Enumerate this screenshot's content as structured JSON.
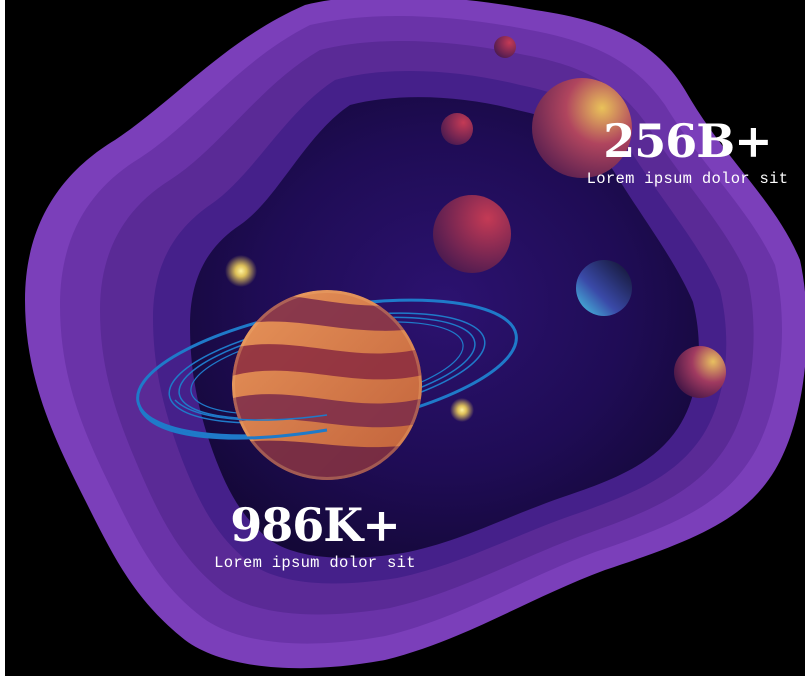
{
  "stats": [
    {
      "value": "256B+",
      "caption": "Lorem ipsum dolor sit"
    },
    {
      "value": "986K+",
      "caption": "Lorem ipsum dolor sit"
    }
  ],
  "colors": {
    "background": "#000000",
    "layer_outer": "#6a35a8",
    "layer_mid": "#5a2a96",
    "layer_inner": "#3b1a78",
    "space": "#1a0a4a",
    "ring": "#1f7ac9",
    "text": "#ffffff"
  },
  "icons": [
    "ringed-planet-icon",
    "planet-icon",
    "star-glow-icon"
  ]
}
